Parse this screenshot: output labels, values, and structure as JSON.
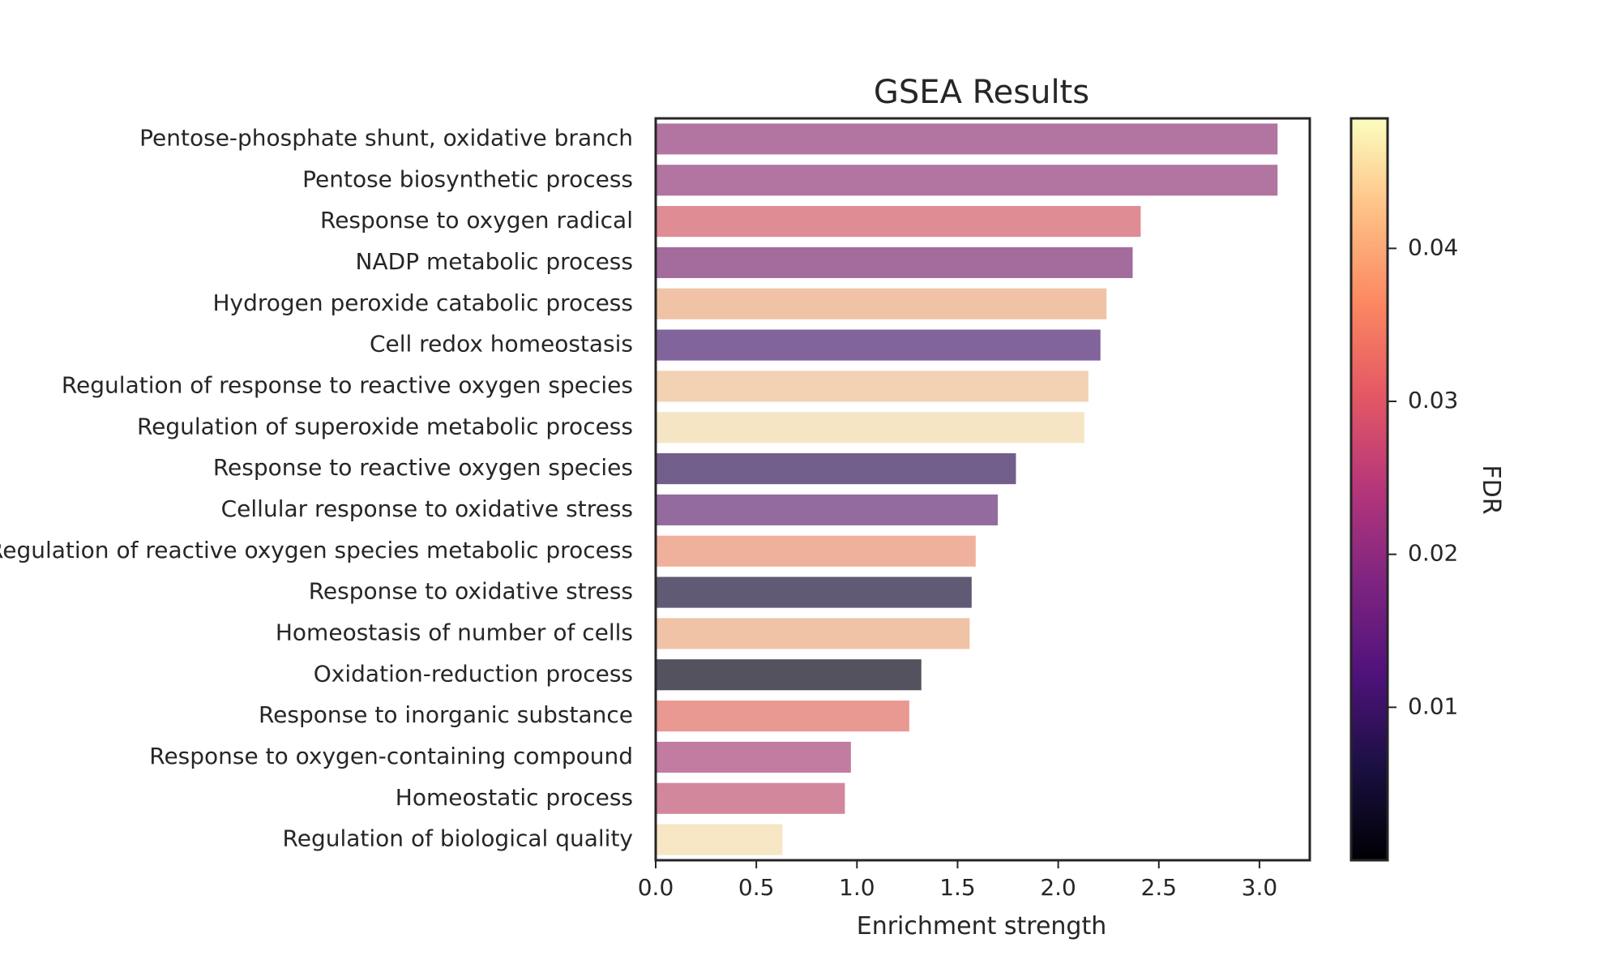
{
  "chart_data": {
    "type": "bar",
    "orientation": "horizontal",
    "title": "GSEA Results",
    "xlabel": "Enrichment strength",
    "ylabel": "",
    "xlim": [
      0,
      3.25
    ],
    "xticks": [
      "0.0",
      "0.5",
      "1.0",
      "1.5",
      "2.0",
      "2.5",
      "3.0"
    ],
    "grid": false,
    "categories": [
      "Pentose-phosphate shunt, oxidative branch",
      "Pentose biosynthetic process",
      "Response to oxygen radical",
      "NADP metabolic process",
      "Hydrogen peroxide catabolic process",
      "Cell redox homeostasis",
      "Regulation of response to reactive oxygen species",
      "Regulation of superoxide metabolic process",
      "Response to reactive oxygen species",
      "Cellular response to oxidative stress",
      "Regulation of reactive oxygen species metabolic process",
      "Response to oxidative stress",
      "Homeostasis of number of cells",
      "Oxidation-reduction process",
      "Response to inorganic substance",
      "Response to oxygen-containing compound",
      "Homeostatic process",
      "Regulation of biological quality"
    ],
    "values": [
      3.09,
      3.09,
      2.41,
      2.37,
      2.24,
      2.21,
      2.15,
      2.13,
      1.79,
      1.7,
      1.59,
      1.57,
      1.56,
      1.32,
      1.26,
      0.97,
      0.94,
      0.63
    ],
    "fdr": [
      0.021,
      0.021,
      0.031,
      0.02,
      0.042,
      0.015,
      0.044,
      0.047,
      0.011,
      0.018,
      0.037,
      0.008,
      0.042,
      0.005,
      0.033,
      0.024,
      0.026,
      0.047
    ],
    "bar_colors": [
      "#b275a1",
      "#b275a1",
      "#df8c95",
      "#a46c9d",
      "#f0c3a7",
      "#82649c",
      "#f3d1b3",
      "#f6e5c4",
      "#725e8b",
      "#946b9f",
      "#efb09c",
      "#615a74",
      "#f0c3a6",
      "#55525f",
      "#e99892",
      "#c37ca1",
      "#d3879c",
      "#f6e6c4"
    ],
    "colorbar": {
      "label": "FDR",
      "colormap": "magma",
      "range": [
        0.0,
        0.0485
      ],
      "ticks": [
        0.01,
        0.02,
        0.03,
        0.04
      ],
      "tick_labels": [
        "0.01",
        "0.02",
        "0.03",
        "0.04"
      ],
      "placement": "right"
    }
  }
}
